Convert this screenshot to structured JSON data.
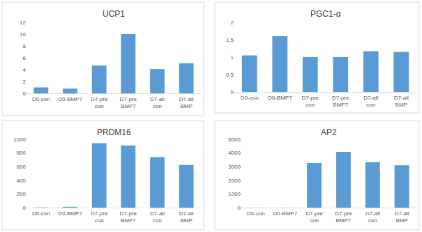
{
  "chart_data": [
    {
      "type": "bar",
      "title": "UCP1",
      "categories": [
        "D0-con",
        "D0-BMP7",
        "D7-pre con",
        "D7-pre BMP7",
        "D7-all con",
        "D7-all BMP"
      ],
      "values": [
        1.0,
        0.8,
        4.7,
        10.0,
        4.1,
        5.1
      ],
      "color": "#5b9bd5",
      "ylim": [
        0,
        12
      ],
      "yticks": [
        0,
        2,
        4,
        6,
        8,
        10,
        12
      ],
      "grid": false
    },
    {
      "type": "bar",
      "title": "PGC1-α",
      "categories": [
        "D0-con",
        "D0-BMP7",
        "D7-pre con",
        "D7-pre BMP7",
        "D7-all con",
        "D7-all BMP"
      ],
      "values": [
        1.05,
        1.6,
        1.0,
        1.0,
        1.17,
        1.15
      ],
      "color": "#5b9bd5",
      "ylim": [
        0,
        2
      ],
      "yticks": [
        0,
        0.5,
        1,
        1.5,
        2
      ],
      "grid": false
    },
    {
      "type": "bar",
      "title": "PRDM16",
      "categories": [
        "D0-con",
        "D0-BMP7",
        "D7-pre con",
        "D7-pre BMP7",
        "D7-all con",
        "D7-all BMP"
      ],
      "values": [
        3,
        12,
        945,
        910,
        740,
        625
      ],
      "color": "#5b9bd5",
      "ylim": [
        0,
        1000
      ],
      "yticks": [
        0,
        200,
        400,
        600,
        800,
        1000
      ],
      "grid": false
    },
    {
      "type": "bar",
      "title": "AP2",
      "categories": [
        "D0-con",
        "D0-BMP7",
        "D7-pre con",
        "D7-pre BMP7",
        "D7-all con",
        "D7-all BMP"
      ],
      "values": [
        5,
        5,
        3270,
        4080,
        3330,
        3100
      ],
      "color": "#5b9bd5",
      "ylim": [
        0,
        5000
      ],
      "yticks": [
        0,
        1000,
        2000,
        3000,
        4000,
        5000
      ],
      "grid": false
    }
  ]
}
